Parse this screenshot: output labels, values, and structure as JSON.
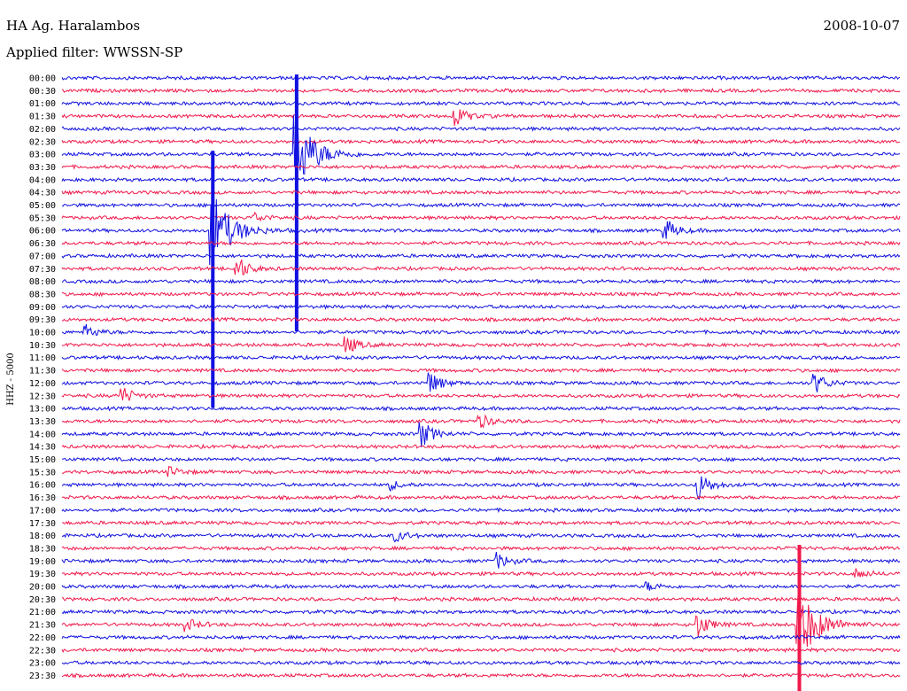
{
  "header": {
    "station": "HA Ag. Haralambos",
    "filter": "Applied filter: WWSSN-SP",
    "date": "2008-10-07"
  },
  "chart_data": {
    "type": "line",
    "title": "HA Ag. Haralambos",
    "subtitle": "Applied filter: WWSSN-SP",
    "date": "2008-10-07",
    "ylabel": "HHZ - 5000",
    "xlabel": "",
    "trace_interval_minutes": 30,
    "trace_colors": [
      "#1010e0",
      "#f0184a"
    ],
    "rows": [
      "00:00",
      "00:30",
      "01:00",
      "01:30",
      "02:00",
      "02:30",
      "03:00",
      "03:30",
      "04:00",
      "04:30",
      "05:00",
      "05:30",
      "06:00",
      "06:30",
      "07:00",
      "07:30",
      "08:00",
      "08:30",
      "09:00",
      "09:30",
      "10:00",
      "10:30",
      "11:00",
      "11:30",
      "12:00",
      "12:30",
      "13:00",
      "13:30",
      "14:00",
      "14:30",
      "15:00",
      "15:30",
      "16:00",
      "16:30",
      "17:00",
      "17:30",
      "18:00",
      "18:30",
      "19:00",
      "19:30",
      "20:00",
      "20:30",
      "21:00",
      "21:30",
      "22:00",
      "22:30",
      "23:00",
      "23:30"
    ],
    "events": [
      {
        "row": 12,
        "position": 0.18,
        "amplitude": 6.0,
        "note": "large event (saturated trace)"
      },
      {
        "row": 6,
        "position": 0.28,
        "amplitude": 6.0,
        "note": "large event (saturated trace)"
      },
      {
        "row": 43,
        "position": 0.88,
        "amplitude": 6.0,
        "note": "large event (saturated trace)"
      },
      {
        "row": 3,
        "position": 0.47,
        "amplitude": 1.6
      },
      {
        "row": 11,
        "position": 0.23,
        "amplitude": 0.7
      },
      {
        "row": 12,
        "position": 0.72,
        "amplitude": 1.8
      },
      {
        "row": 15,
        "position": 0.21,
        "amplitude": 1.8
      },
      {
        "row": 20,
        "position": 0.03,
        "amplitude": 1.0
      },
      {
        "row": 21,
        "position": 0.34,
        "amplitude": 1.4
      },
      {
        "row": 25,
        "position": 0.07,
        "amplitude": 1.6
      },
      {
        "row": 24,
        "position": 0.44,
        "amplitude": 1.6
      },
      {
        "row": 24,
        "position": 0.9,
        "amplitude": 1.5
      },
      {
        "row": 28,
        "position": 0.43,
        "amplitude": 2.0
      },
      {
        "row": 27,
        "position": 0.5,
        "amplitude": 1.0
      },
      {
        "row": 32,
        "position": 0.39,
        "amplitude": 0.8
      },
      {
        "row": 32,
        "position": 0.76,
        "amplitude": 2.2
      },
      {
        "row": 31,
        "position": 0.13,
        "amplitude": 0.7
      },
      {
        "row": 36,
        "position": 0.4,
        "amplitude": 0.8
      },
      {
        "row": 38,
        "position": 0.52,
        "amplitude": 1.2
      },
      {
        "row": 40,
        "position": 0.7,
        "amplitude": 0.6
      },
      {
        "row": 43,
        "position": 0.76,
        "amplitude": 1.8
      },
      {
        "row": 43,
        "position": 0.15,
        "amplitude": 0.9
      },
      {
        "row": 39,
        "position": 0.95,
        "amplitude": 0.7
      }
    ]
  }
}
